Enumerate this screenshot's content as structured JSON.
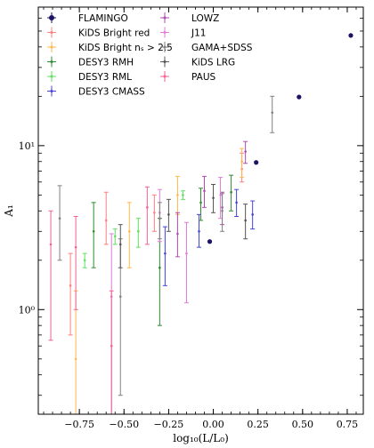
{
  "chart_data": {
    "type": "scatter",
    "xlabel": "log₁₀(L/L₀)",
    "ylabel": "A₁",
    "xlim": [
      -0.98,
      0.84
    ],
    "ylim": [
      0.23,
      70
    ],
    "yscale": "log",
    "grid": false,
    "legend_position": "top-left",
    "x_ticks": [
      -0.75,
      -0.5,
      -0.25,
      0.0,
      0.25,
      0.5,
      0.75
    ],
    "x_tick_labels": [
      "−0.75",
      "−0.50",
      "−0.25",
      "0.00",
      "0.25",
      "0.50",
      "0.75"
    ],
    "y_ticks": [
      1,
      10
    ],
    "y_tick_labels": [
      "10⁰",
      "10¹"
    ],
    "series": [
      {
        "name": "FLAMINGO",
        "color": "#1b1464",
        "marker": "dot",
        "points": [
          {
            "x": -0.02,
            "y": 2.6
          },
          {
            "x": 0.24,
            "y": 7.9
          },
          {
            "x": 0.48,
            "y": 19.8
          },
          {
            "x": 0.77,
            "y": 47
          }
        ]
      },
      {
        "name": "KiDS Bright red",
        "color": "#ff7f7f",
        "points": [
          {
            "x": -0.8,
            "y": 1.4,
            "lo": 0.7,
            "hi": 2.2
          },
          {
            "x": -0.6,
            "y": 3.5,
            "lo": 2.5,
            "hi": 5.2
          },
          {
            "x": -0.33,
            "y": 3.9,
            "lo": 3.0,
            "hi": 5.0
          },
          {
            "x": 0.16,
            "y": 7.2,
            "lo": 6.0,
            "hi": 9.0
          }
        ]
      },
      {
        "name": "KiDS Bright nₛ > 2.5",
        "color": "#ffb84d",
        "points": [
          {
            "x": -0.77,
            "y": 0.5,
            "lo": 0.23,
            "hi": 1.3
          },
          {
            "x": -0.47,
            "y": 3.0,
            "lo": 1.8,
            "hi": 4.5
          },
          {
            "x": -0.2,
            "y": 5.0,
            "lo": 3.8,
            "hi": 6.5
          },
          {
            "x": 0.16,
            "y": 8.0,
            "lo": 6.4,
            "hi": 9.6
          }
        ]
      },
      {
        "name": "DESY3 RMH",
        "color": "#2e8b2e",
        "points": [
          {
            "x": -0.67,
            "y": 3.0,
            "lo": 1.8,
            "hi": 4.5
          },
          {
            "x": -0.3,
            "y": 1.8,
            "lo": 0.8,
            "hi": 3.6
          },
          {
            "x": -0.07,
            "y": 4.5,
            "lo": 3.5,
            "hi": 5.5
          },
          {
            "x": 0.1,
            "y": 5.2,
            "lo": 4.0,
            "hi": 6.6
          }
        ]
      },
      {
        "name": "DESY3 RML",
        "color": "#5ee05e",
        "points": [
          {
            "x": -0.72,
            "y": 2.0,
            "lo": 1.8,
            "hi": 2.2
          },
          {
            "x": -0.55,
            "y": 2.8,
            "lo": 2.5,
            "hi": 3.1
          },
          {
            "x": -0.42,
            "y": 3.0,
            "lo": 2.4,
            "hi": 3.6
          },
          {
            "x": -0.17,
            "y": 5.0,
            "lo": 4.7,
            "hi": 5.3
          }
        ]
      },
      {
        "name": "DESY3 CMASS",
        "color": "#4444dd",
        "points": [
          {
            "x": -0.27,
            "y": 2.2,
            "lo": 1.4,
            "hi": 3.2
          },
          {
            "x": -0.08,
            "y": 3.0,
            "lo": 2.4,
            "hi": 3.8
          },
          {
            "x": 0.13,
            "y": 4.5,
            "lo": 3.7,
            "hi": 5.4
          },
          {
            "x": 0.22,
            "y": 3.8,
            "lo": 3.1,
            "hi": 4.6
          }
        ]
      },
      {
        "name": "LOWZ",
        "color": "#b24bb2",
        "points": [
          {
            "x": -0.2,
            "y": 2.9,
            "lo": 2.1,
            "hi": 3.9
          },
          {
            "x": -0.05,
            "y": 5.3,
            "lo": 4.2,
            "hi": 6.5
          },
          {
            "x": 0.05,
            "y": 4.2,
            "lo": 3.3,
            "hi": 5.2
          },
          {
            "x": 0.18,
            "y": 9.2,
            "lo": 7.8,
            "hi": 10.6
          }
        ]
      },
      {
        "name": "J11",
        "color": "#e07bd9",
        "points": [
          {
            "x": -0.57,
            "y": 1.2,
            "lo": 0.23,
            "hi": 2.9
          },
          {
            "x": -0.3,
            "y": 3.9,
            "lo": 2.6,
            "hi": 5.4
          },
          {
            "x": -0.15,
            "y": 2.2,
            "lo": 1.1,
            "hi": 3.4
          },
          {
            "x": 0.04,
            "y": 5.0,
            "lo": 3.6,
            "hi": 6.4
          }
        ]
      },
      {
        "name": "GAMA+SDSS",
        "color": "#808080",
        "points": [
          {
            "x": -0.86,
            "y": 3.6,
            "lo": 2.0,
            "hi": 5.7
          },
          {
            "x": -0.52,
            "y": 1.2,
            "lo": 0.3,
            "hi": 2.7
          },
          {
            "x": -0.3,
            "y": 3.6,
            "lo": 2.7,
            "hi": 4.5
          },
          {
            "x": 0.05,
            "y": 4.0,
            "lo": 3.0,
            "hi": 5.1
          },
          {
            "x": 0.33,
            "y": 15.9,
            "lo": 12.0,
            "hi": 20.0
          }
        ]
      },
      {
        "name": "KiDS LRG",
        "color": "#555555",
        "points": [
          {
            "x": -0.52,
            "y": 2.5,
            "lo": 1.8,
            "hi": 3.3
          },
          {
            "x": -0.25,
            "y": 3.8,
            "lo": 3.0,
            "hi": 4.7
          },
          {
            "x": 0.0,
            "y": 4.8,
            "lo": 3.9,
            "hi": 5.8
          },
          {
            "x": 0.18,
            "y": 3.5,
            "lo": 2.7,
            "hi": 4.4
          }
        ]
      },
      {
        "name": "PAUS",
        "color": "#f06292",
        "points": [
          {
            "x": -0.91,
            "y": 2.5,
            "lo": 0.65,
            "hi": 4.0
          },
          {
            "x": -0.77,
            "y": 2.4,
            "lo": 1.0,
            "hi": 3.7
          },
          {
            "x": -0.57,
            "y": 0.6,
            "lo": 0.23,
            "hi": 1.3
          },
          {
            "x": -0.37,
            "y": 4.2,
            "lo": 2.5,
            "hi": 5.6
          }
        ]
      }
    ]
  }
}
